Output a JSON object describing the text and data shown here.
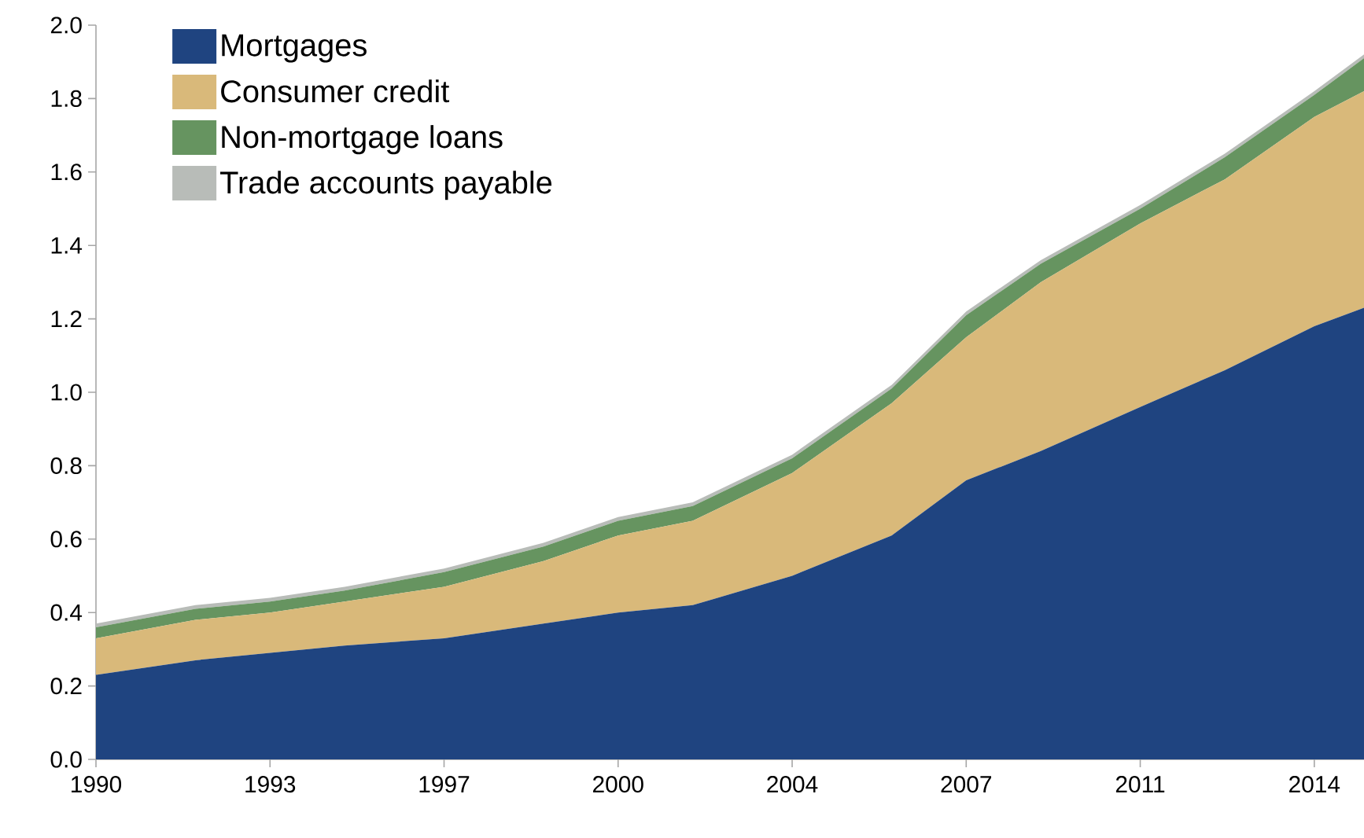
{
  "chart_data": {
    "type": "area",
    "stacked": true,
    "legend": "top left",
    "x": [
      1990,
      1992,
      1993.5,
      1995,
      1997,
      1999,
      2000.5,
      2002,
      2004,
      2006,
      2007.5,
      2009,
      2011,
      2012.7,
      2014.5,
      2015.5
    ],
    "series": [
      {
        "name": "Mortgages",
        "color": "#1f4480",
        "values": [
          0.23,
          0.27,
          0.29,
          0.31,
          0.33,
          0.37,
          0.4,
          0.42,
          0.5,
          0.61,
          0.76,
          0.84,
          0.96,
          1.06,
          1.18,
          1.23
        ]
      },
      {
        "name": "Consumer credit",
        "color": "#d9b97a",
        "values": [
          0.1,
          0.11,
          0.11,
          0.12,
          0.14,
          0.17,
          0.21,
          0.23,
          0.28,
          0.36,
          0.39,
          0.46,
          0.5,
          0.52,
          0.57,
          0.59
        ]
      },
      {
        "name": "Non-mortgage loans",
        "color": "#669460",
        "values": [
          0.03,
          0.03,
          0.03,
          0.03,
          0.04,
          0.04,
          0.04,
          0.04,
          0.04,
          0.04,
          0.06,
          0.05,
          0.04,
          0.06,
          0.06,
          0.09
        ]
      },
      {
        "name": "Trade accounts payable",
        "color": "#b8bcb8",
        "values": [
          0.01,
          0.01,
          0.01,
          0.01,
          0.01,
          0.01,
          0.01,
          0.01,
          0.01,
          0.01,
          0.01,
          0.01,
          0.01,
          0.01,
          0.01,
          0.01
        ]
      }
    ],
    "xlim": [
      1990,
      2015.5
    ],
    "xticks": [
      1990,
      {
        "value": 1993.5,
        "label": "1993"
      },
      1997,
      {
        "value": 2000.5,
        "label": "2000"
      },
      2004,
      {
        "value": 2007.5,
        "label": "2007"
      },
      2011,
      {
        "value": 2014.5,
        "label": "2014"
      }
    ],
    "ylim": [
      0,
      2
    ],
    "yticks": [
      {
        "value": 0,
        "label": "0.0"
      },
      0.2,
      0.4,
      0.6,
      0.8,
      {
        "value": 1,
        "label": "1.0"
      },
      1.2,
      1.4,
      1.6,
      1.8,
      {
        "value": 2,
        "label": "2.0"
      }
    ]
  }
}
